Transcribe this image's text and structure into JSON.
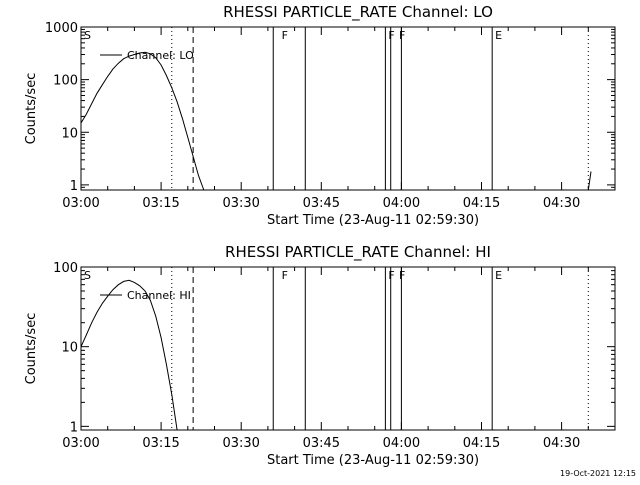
{
  "timestamp": "19-Oct-2021 12:15",
  "chart_data": [
    {
      "type": "line",
      "title": "RHESSI PARTICLE_RATE Channel: LO",
      "xlabel": "Start Time (23-Aug-11 02:59:30)",
      "ylabel": "Counts/sec",
      "yscale": "log",
      "xlim": [
        "03:00",
        "04:40"
      ],
      "ylim": [
        0.8,
        1000
      ],
      "x_tick_labels": [
        "03:00",
        "03:15",
        "03:30",
        "03:45",
        "04:00",
        "04:15",
        "04:30"
      ],
      "y_tick_labels": [
        "1000",
        "100",
        "10",
        "1"
      ],
      "legend": "Channel: LO",
      "legend_position": "top-left",
      "markers": [
        {
          "label": "S",
          "time": "03:00"
        },
        {
          "label": "F",
          "time": "03:37"
        },
        {
          "label": "F",
          "time": "03:57"
        },
        {
          "label": "F",
          "time": "03:59"
        },
        {
          "label": "E",
          "time": "04:17"
        }
      ],
      "solid_lines": [
        "03:36",
        "03:42",
        "03:57",
        "03:58",
        "04:00",
        "04:17"
      ],
      "dotted_lines": [
        "03:17",
        "04:35"
      ],
      "dashed_lines": [
        "03:21"
      ],
      "series": [
        {
          "name": "Channel: LO",
          "points": [
            [
              "03:00",
              15
            ],
            [
              "03:01",
              22
            ],
            [
              "03:02",
              35
            ],
            [
              "03:03",
              55
            ],
            [
              "03:04",
              80
            ],
            [
              "03:05",
              115
            ],
            [
              "03:06",
              160
            ],
            [
              "03:07",
              205
            ],
            [
              "03:08",
              250
            ],
            [
              "03:09",
              280
            ],
            [
              "03:10",
              300
            ],
            [
              "03:11",
              320
            ],
            [
              "03:12",
              330
            ],
            [
              "03:13",
              310
            ],
            [
              "03:14",
              260
            ],
            [
              "03:15",
              190
            ],
            [
              "03:16",
              120
            ],
            [
              "03:17",
              70
            ],
            [
              "03:18",
              38
            ],
            [
              "03:19",
              18
            ],
            [
              "03:20",
              8
            ],
            [
              "03:21",
              3.5
            ],
            [
              "03:22",
              1.5
            ],
            [
              "03:23",
              0.8
            ]
          ]
        },
        {
          "name": "",
          "points": [
            [
              "04:35",
              0.8
            ],
            [
              "04:35.5",
              1.8
            ]
          ]
        }
      ]
    },
    {
      "type": "line",
      "title": "RHESSI PARTICLE_RATE Channel: HI",
      "xlabel": "Start Time (23-Aug-11 02:59:30)",
      "ylabel": "Counts/sec",
      "yscale": "log",
      "xlim": [
        "03:00",
        "04:40"
      ],
      "ylim": [
        0.9,
        100
      ],
      "x_tick_labels": [
        "03:00",
        "03:15",
        "03:30",
        "03:45",
        "04:00",
        "04:15",
        "04:30"
      ],
      "y_tick_labels": [
        "100",
        "10",
        "1"
      ],
      "legend": "Channel: HI",
      "legend_position": "top-left",
      "markers": [
        {
          "label": "S",
          "time": "03:00"
        },
        {
          "label": "F",
          "time": "03:37"
        },
        {
          "label": "F",
          "time": "03:57"
        },
        {
          "label": "F",
          "time": "03:59"
        },
        {
          "label": "E",
          "time": "04:17"
        }
      ],
      "solid_lines": [
        "03:36",
        "03:42",
        "03:57",
        "03:58",
        "04:00",
        "04:17"
      ],
      "dotted_lines": [
        "03:17",
        "04:35"
      ],
      "dashed_lines": [
        "03:21"
      ],
      "series": [
        {
          "name": "Channel: HI",
          "points": [
            [
              "03:00",
              10
            ],
            [
              "03:01",
              14
            ],
            [
              "03:02",
              20
            ],
            [
              "03:03",
              27
            ],
            [
              "03:04",
              35
            ],
            [
              "03:05",
              43
            ],
            [
              "03:06",
              52
            ],
            [
              "03:07",
              60
            ],
            [
              "03:08",
              66
            ],
            [
              "03:09",
              68
            ],
            [
              "03:10",
              64
            ],
            [
              "03:11",
              58
            ],
            [
              "03:12",
              50
            ],
            [
              "03:13",
              38
            ],
            [
              "03:14",
              24
            ],
            [
              "03:15",
              13
            ],
            [
              "03:16",
              6
            ],
            [
              "03:17",
              2.5
            ],
            [
              "03:18",
              0.9
            ]
          ]
        }
      ]
    }
  ]
}
